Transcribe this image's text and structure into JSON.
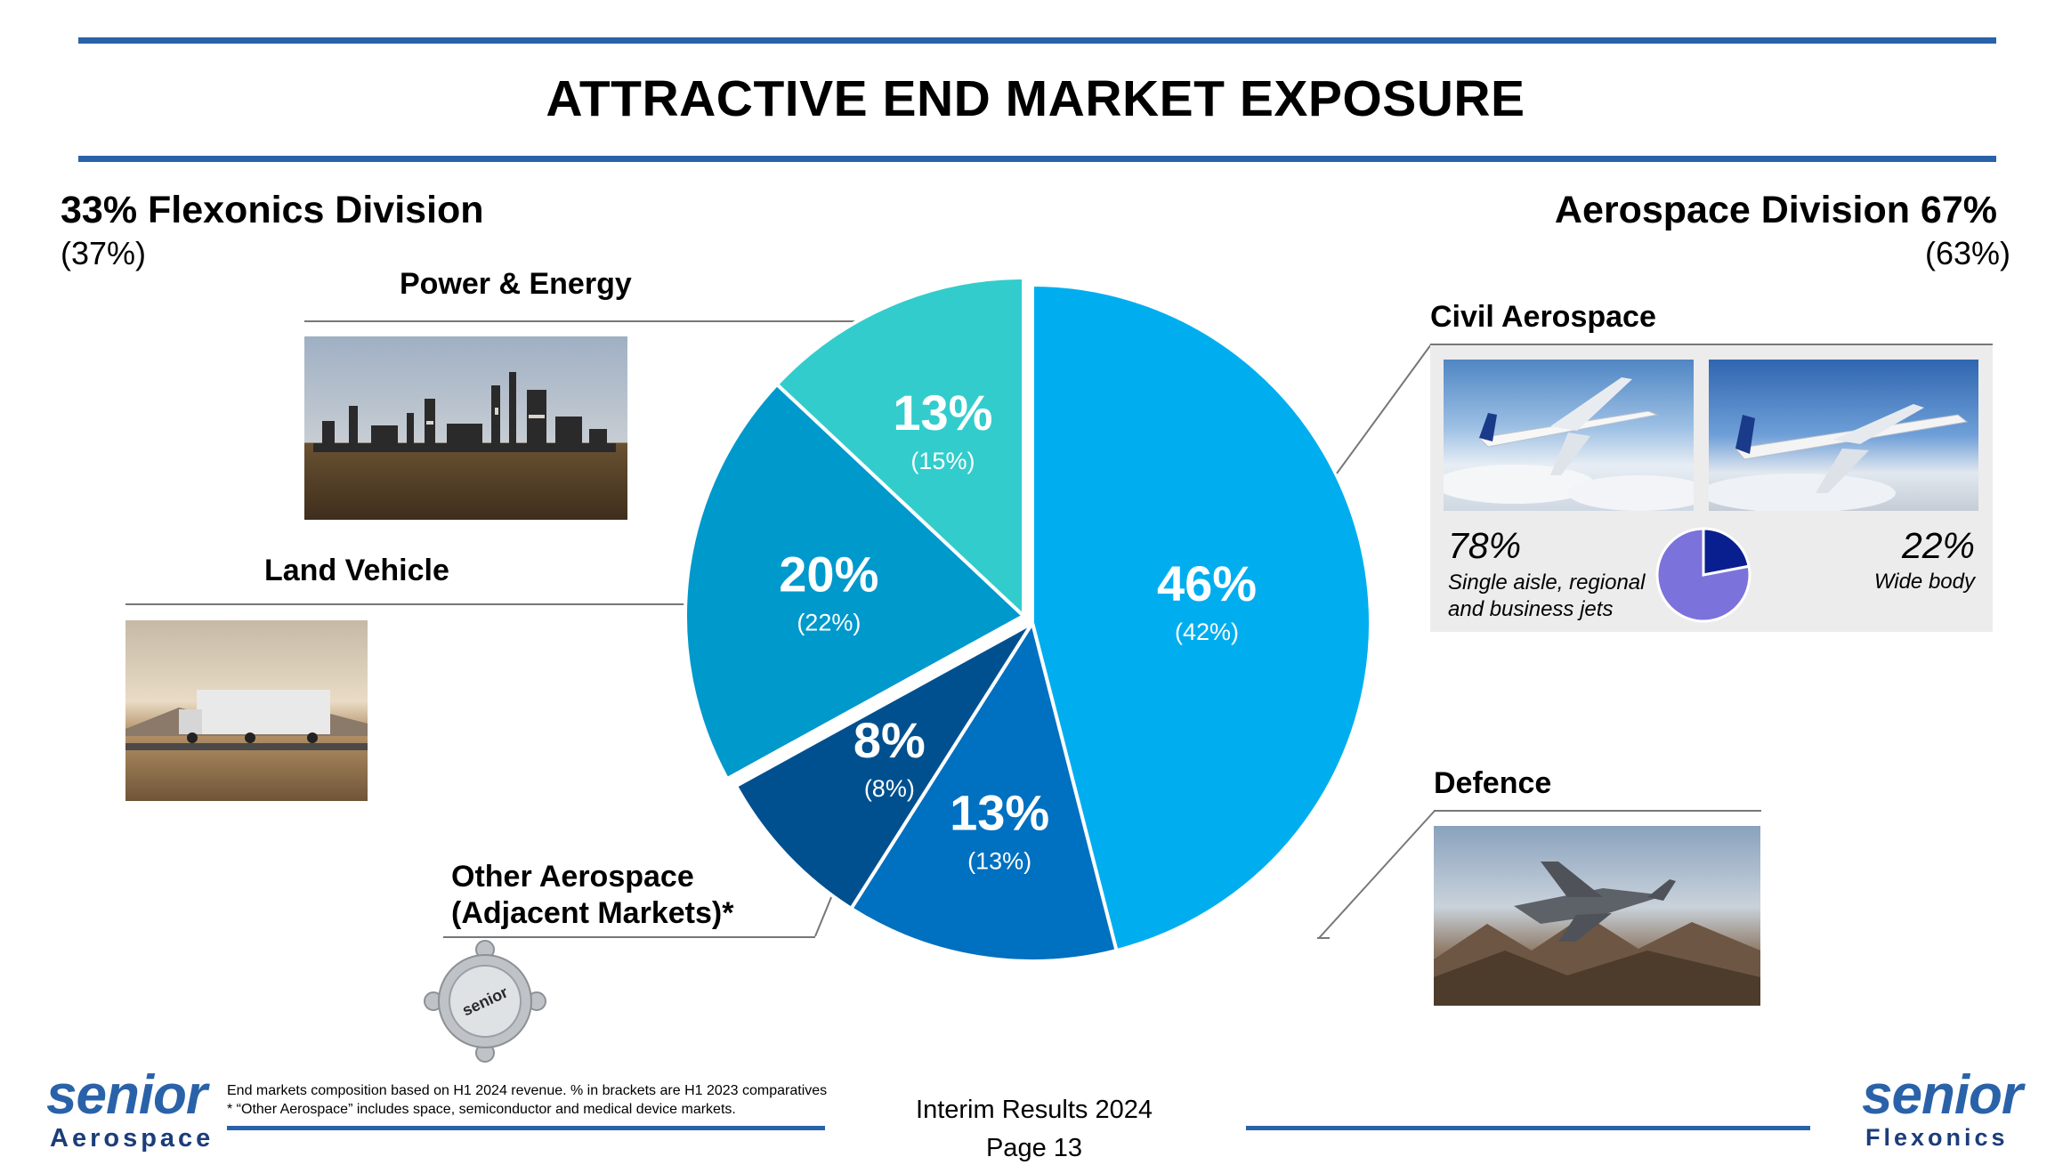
{
  "title": "ATTRACTIVE END MARKET EXPOSURE",
  "flexonics": {
    "heading": "33% Flexonics Division",
    "prior": "(37%)"
  },
  "aerospace": {
    "heading": "Aerospace Division 67%",
    "prior": "(63%)"
  },
  "segments": {
    "power": "Power & Energy",
    "land": "Land Vehicle",
    "other_line1": "Other Aerospace",
    "other_line2": "(Adjacent Markets)*",
    "civil": "Civil Aerospace",
    "defence": "Defence"
  },
  "chart_data": [
    {
      "type": "pie",
      "title": "End market composition (H1 2024 revenue, H1 2023 in brackets)",
      "categories": [
        "Civil Aerospace",
        "Defence",
        "Other Aerospace (Adjacent Markets)",
        "Land Vehicle",
        "Power & Energy"
      ],
      "values": [
        46,
        13,
        8,
        20,
        13
      ],
      "labels": [
        "46%",
        "13%",
        "8%",
        "20%",
        "13%"
      ],
      "prior_values": [
        42,
        13,
        8,
        22,
        15
      ],
      "prior_labels": [
        "(42%)",
        "(13%)",
        "(8%)",
        "(22%)",
        "(15%)"
      ],
      "colors": [
        "#00aeef",
        "#0070c0",
        "#00508f",
        "#0099cc",
        "#33cccc"
      ]
    },
    {
      "type": "pie",
      "title": "Civil Aerospace split",
      "categories": [
        "Single aisle, regional and business jets",
        "Wide body"
      ],
      "values": [
        78,
        22
      ],
      "colors": [
        "#7b72dc",
        "#0a1f8f"
      ]
    }
  ],
  "civil_split": {
    "narrow_pct": "78%",
    "narrow_line1": "Single aisle, regional",
    "narrow_line2": "and business jets",
    "wide_pct": "22%",
    "wide_label": "Wide body"
  },
  "footnote": {
    "line1": "End markets composition based on H1 2024 revenue. % in brackets are H1 2023 comparatives",
    "line2": "* “Other Aerospace” includes space, semiconductor and medical device markets."
  },
  "footer": {
    "report": "Interim Results 2024",
    "page": "Page 13"
  },
  "logos": {
    "left_word": "senior",
    "left_sub": "Aerospace",
    "right_word": "senior",
    "right_sub": "Flexonics",
    "sensor_text": "senior"
  },
  "colors": {
    "accent": "#2a62a9",
    "panel": "#ececec"
  }
}
